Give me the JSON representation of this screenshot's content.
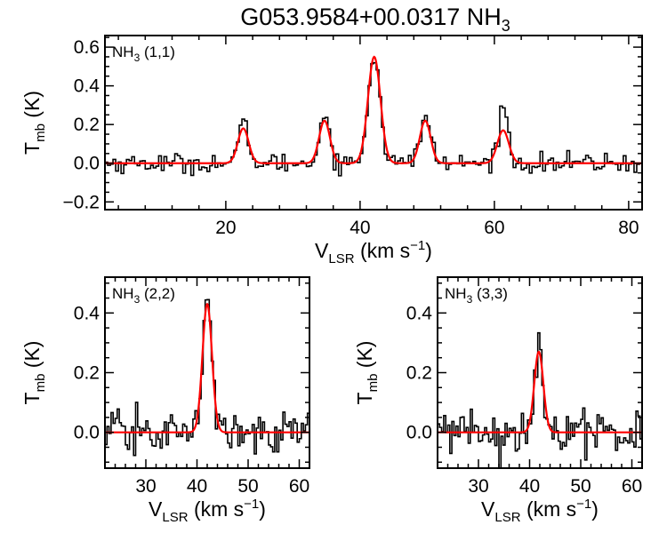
{
  "figure": {
    "title": "G053.9584+00.0317 NH",
    "title_subscript": "3",
    "colors": {
      "observed": "#000000",
      "fit": "#ff0000",
      "axes": "#000000",
      "background": "#ffffff"
    }
  },
  "chart_data": [
    {
      "type": "line",
      "panel": "NH3 (1,1)",
      "label_main": "NH",
      "label_sub": "3",
      "label_rest": " (1,1)",
      "xlabel_main": "V",
      "xlabel_sub": "LSR",
      "xlabel_rest": " (km s",
      "xlabel_sup": "−1",
      "xlabel_end": ")",
      "ylabel_main": "T",
      "ylabel_sub": "mb",
      "ylabel_rest": " (K)",
      "xlim": [
        2,
        82
      ],
      "ylim": [
        -0.24,
        0.66
      ],
      "xticks": [
        20,
        40,
        60,
        80
      ],
      "xtick_labels": [
        "20",
        "40",
        "60",
        "80"
      ],
      "yticks": [
        -0.2,
        0.0,
        0.2,
        0.4,
        0.6
      ],
      "ytick_labels": [
        "−0.2",
        "0.0",
        "0.2",
        "0.4",
        "0.6"
      ],
      "channel_width": 0.4,
      "noise_rms": 0.025,
      "series": [
        {
          "role": "observed spectrum",
          "style": "histogram",
          "components": [
            {
              "center": 22.7,
              "amplitude": 0.2,
              "fwhm": 1.7
            },
            {
              "center": 34.7,
              "amplitude": 0.25,
              "fwhm": 1.8
            },
            {
              "center": 42.1,
              "amplitude": 0.56,
              "fwhm": 2.1
            },
            {
              "center": 49.7,
              "amplitude": 0.24,
              "fwhm": 1.9
            },
            {
              "center": 61.3,
              "amplitude": 0.32,
              "fwhm": 1.5
            }
          ]
        },
        {
          "role": "model fit",
          "style": "line",
          "components": [
            {
              "center": 22.6,
              "amplitude": 0.18,
              "fwhm": 1.9
            },
            {
              "center": 34.7,
              "amplitude": 0.22,
              "fwhm": 1.9
            },
            {
              "center": 42.1,
              "amplitude": 0.55,
              "fwhm": 2.2
            },
            {
              "center": 49.7,
              "amplitude": 0.22,
              "fwhm": 1.9
            },
            {
              "center": 61.3,
              "amplitude": 0.17,
              "fwhm": 2.0
            }
          ]
        }
      ]
    },
    {
      "type": "line",
      "panel": "NH3 (2,2)",
      "label_main": "NH",
      "label_sub": "3",
      "label_rest": " (2,2)",
      "xlabel_main": "V",
      "xlabel_sub": "LSR",
      "xlabel_rest": " (km s",
      "xlabel_sup": "−1",
      "xlabel_end": ")",
      "ylabel_main": "T",
      "ylabel_sub": "mb",
      "ylabel_rest": " (K)",
      "xlim": [
        22,
        62
      ],
      "ylim": [
        -0.12,
        0.52
      ],
      "xticks": [
        30,
        40,
        50,
        60
      ],
      "xtick_labels": [
        "30",
        "40",
        "50",
        "60"
      ],
      "yticks": [
        0.0,
        0.2,
        0.4
      ],
      "ytick_labels": [
        "0.0",
        "0.2",
        "0.4"
      ],
      "channel_width": 0.4,
      "noise_rms": 0.035,
      "series": [
        {
          "role": "observed spectrum",
          "style": "histogram",
          "components": [
            {
              "center": 42.0,
              "amplitude": 0.44,
              "fwhm": 2.1
            }
          ]
        },
        {
          "role": "model fit",
          "style": "line",
          "components": [
            {
              "center": 42.0,
              "amplitude": 0.43,
              "fwhm": 2.2
            }
          ]
        }
      ]
    },
    {
      "type": "line",
      "panel": "NH3 (3,3)",
      "label_main": "NH",
      "label_sub": "3",
      "label_rest": " (3,3)",
      "xlabel_main": "V",
      "xlabel_sub": "LSR",
      "xlabel_rest": " (km s",
      "xlabel_sup": "−1",
      "xlabel_end": ")",
      "ylabel_main": "T",
      "ylabel_sub": "mb",
      "ylabel_rest": " (K)",
      "xlim": [
        22,
        62
      ],
      "ylim": [
        -0.12,
        0.52
      ],
      "xticks": [
        30,
        40,
        50,
        60
      ],
      "xtick_labels": [
        "30",
        "40",
        "50",
        "60"
      ],
      "yticks": [
        0.0,
        0.2,
        0.4
      ],
      "ytick_labels": [
        "0.0",
        "0.2",
        "0.4"
      ],
      "channel_width": 0.4,
      "noise_rms": 0.035,
      "series": [
        {
          "role": "observed spectrum",
          "style": "histogram",
          "components": [
            {
              "center": 41.8,
              "amplitude": 0.28,
              "fwhm": 2.0
            }
          ]
        },
        {
          "role": "model fit",
          "style": "line",
          "components": [
            {
              "center": 41.8,
              "amplitude": 0.27,
              "fwhm": 2.1
            }
          ]
        }
      ]
    }
  ]
}
